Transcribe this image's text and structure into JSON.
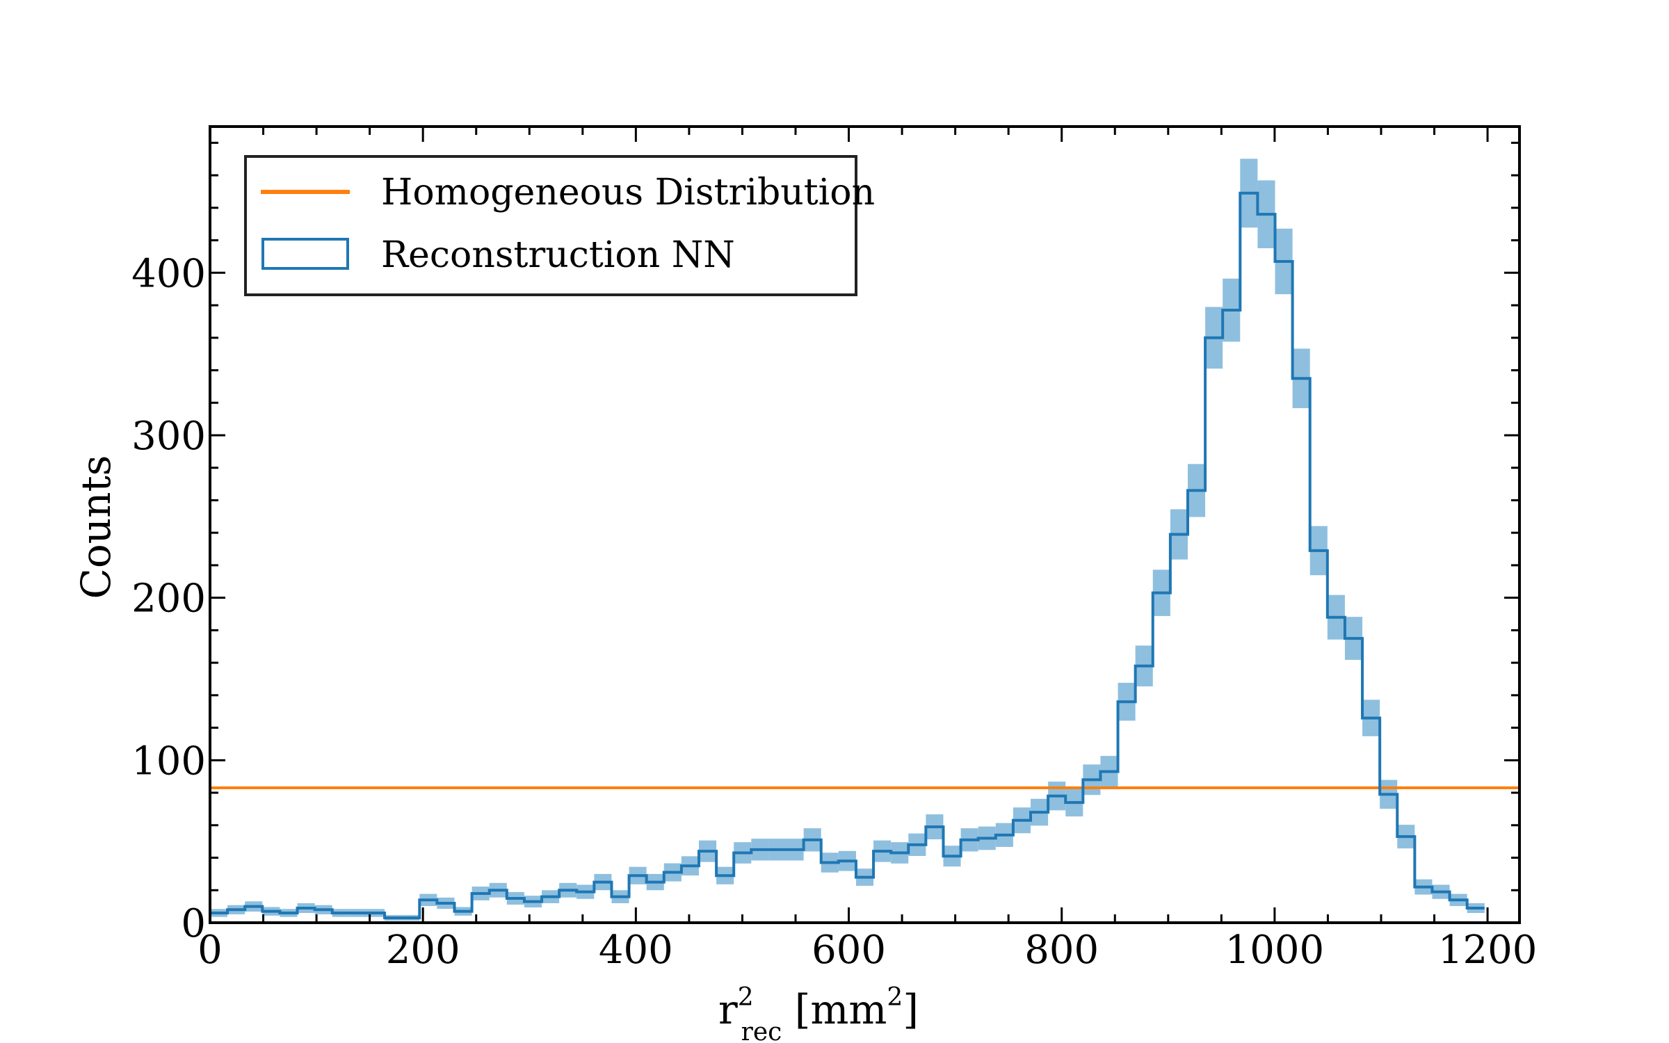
{
  "chart_data": {
    "type": "histogram",
    "xlabel": {
      "base": "r",
      "superscript": "2",
      "subscript": "rec",
      "unit_open": " [mm",
      "unit_sup": "2",
      "unit_close": "]"
    },
    "ylabel": "Counts",
    "xlim": [
      0,
      1230
    ],
    "ylim": [
      0,
      490
    ],
    "xticks": [
      0,
      200,
      400,
      600,
      800,
      1000,
      1200
    ],
    "yticks": [
      0,
      100,
      200,
      300,
      400
    ],
    "grid": false,
    "legend_position": "top-left",
    "series": [
      {
        "name": "Homogeneous Distribution",
        "kind": "hline",
        "color": "#ff7f0e",
        "y": 83
      },
      {
        "name": "Reconstruction NN",
        "kind": "step-histogram-with-error",
        "color": "#1f77b4",
        "error_color": "#8fbfde",
        "bin_width": 16.4,
        "x_start": 0,
        "values": [
          6,
          8,
          10,
          7,
          6,
          9,
          8,
          6,
          6,
          6,
          3,
          3,
          14,
          12,
          7,
          18,
          20,
          15,
          13,
          16,
          20,
          19,
          25,
          16,
          29,
          25,
          31,
          35,
          44,
          29,
          43,
          45,
          45,
          45,
          51,
          37,
          38,
          28,
          44,
          43,
          48,
          59,
          41,
          51,
          52,
          54,
          63,
          68,
          78,
          74,
          88,
          93,
          136,
          158,
          203,
          239,
          266,
          360,
          377,
          449,
          436,
          407,
          335,
          229,
          188,
          175,
          126,
          79,
          53,
          22,
          19,
          14,
          9
        ]
      }
    ]
  }
}
